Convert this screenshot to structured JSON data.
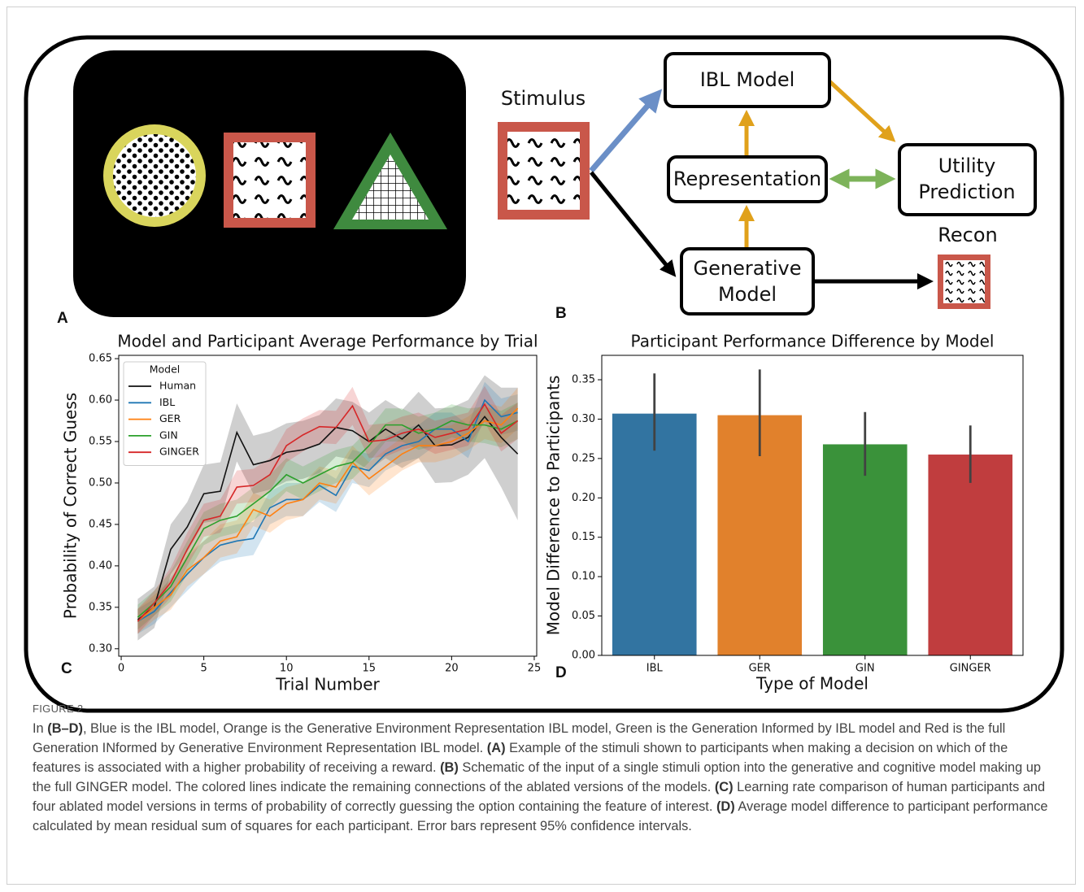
{
  "panel_labels": [
    "A",
    "B",
    "C",
    "D"
  ],
  "diagram": {
    "stimulus": "Stimulus",
    "ibl_model": "IBL Model",
    "representation": "Representation",
    "utility_prediction": [
      "Utility",
      "Prediction"
    ],
    "generative_model": [
      "Generative",
      "Model"
    ],
    "recon": "Recon"
  },
  "chart_data": [
    {
      "type": "line",
      "title": "Model and Participant Average Performance by Trial",
      "x_label": "Trial Number",
      "y_label": "Probability of Correct Guess",
      "x": [
        1,
        2,
        3,
        4,
        5,
        6,
        7,
        8,
        9,
        10,
        11,
        12,
        13,
        14,
        15,
        16,
        17,
        18,
        19,
        20,
        21,
        22,
        23,
        24
      ],
      "xlim": [
        -0.15,
        25.15
      ],
      "xticks": [
        0,
        5,
        10,
        15,
        20,
        25
      ],
      "ylim": [
        0.291,
        0.654
      ],
      "yticks": [
        {
          "value": 0.3,
          "label": "0.30"
        },
        0.35,
        {
          "value": 0.4,
          "label": "0.40"
        },
        0.45,
        {
          "value": 0.5,
          "label": "0.50"
        },
        0.55,
        {
          "value": 0.6,
          "label": "0.60"
        },
        0.65
      ],
      "grid": false,
      "legend": "upper left",
      "legend_title": "Model",
      "series": [
        {
          "name": "Human",
          "color": "#111111",
          "values": [
            0.335,
            0.35,
            0.42,
            0.447,
            0.487,
            0.49,
            0.561,
            0.522,
            0.527,
            0.537,
            0.54,
            0.547,
            0.567,
            0.563,
            0.55,
            0.565,
            0.553,
            0.57,
            0.545,
            0.546,
            0.555,
            0.58,
            0.555,
            0.535
          ],
          "lower": [
            0.31,
            0.325,
            0.39,
            0.417,
            0.452,
            0.455,
            0.526,
            0.487,
            0.492,
            0.502,
            0.505,
            0.512,
            0.532,
            0.528,
            0.515,
            0.53,
            0.518,
            0.53,
            0.5,
            0.501,
            0.51,
            0.53,
            0.495,
            0.455
          ],
          "upper": [
            0.36,
            0.375,
            0.45,
            0.477,
            0.522,
            0.525,
            0.596,
            0.557,
            0.562,
            0.572,
            0.575,
            0.582,
            0.602,
            0.598,
            0.585,
            0.6,
            0.588,
            0.61,
            0.59,
            0.591,
            0.6,
            0.63,
            0.615,
            0.615
          ]
        },
        {
          "name": "IBL",
          "color": "#1f77b4",
          "values": [
            0.333,
            0.345,
            0.368,
            0.39,
            0.41,
            0.425,
            0.43,
            0.433,
            0.47,
            0.48,
            0.48,
            0.497,
            0.485,
            0.52,
            0.515,
            0.535,
            0.545,
            0.55,
            0.565,
            0.565,
            0.55,
            0.6,
            0.58,
            0.585
          ],
          "lower": [
            0.318,
            0.33,
            0.35,
            0.37,
            0.39,
            0.405,
            0.41,
            0.413,
            0.45,
            0.46,
            0.46,
            0.477,
            0.465,
            0.5,
            0.495,
            0.515,
            0.525,
            0.53,
            0.545,
            0.545,
            0.53,
            0.578,
            0.558,
            0.563
          ],
          "upper": [
            0.348,
            0.36,
            0.386,
            0.41,
            0.43,
            0.445,
            0.45,
            0.453,
            0.49,
            0.5,
            0.5,
            0.517,
            0.505,
            0.54,
            0.535,
            0.555,
            0.565,
            0.57,
            0.585,
            0.585,
            0.57,
            0.622,
            0.602,
            0.607
          ]
        },
        {
          "name": "GER",
          "color": "#ff7f0e",
          "values": [
            0.333,
            0.35,
            0.365,
            0.395,
            0.41,
            0.43,
            0.435,
            0.468,
            0.46,
            0.475,
            0.48,
            0.5,
            0.495,
            0.525,
            0.505,
            0.52,
            0.535,
            0.545,
            0.545,
            0.55,
            0.56,
            0.575,
            0.57,
            0.59
          ],
          "lower": [
            0.318,
            0.335,
            0.347,
            0.375,
            0.39,
            0.41,
            0.415,
            0.448,
            0.44,
            0.455,
            0.46,
            0.48,
            0.475,
            0.505,
            0.485,
            0.5,
            0.515,
            0.525,
            0.525,
            0.53,
            0.54,
            0.553,
            0.548,
            0.565
          ],
          "upper": [
            0.348,
            0.365,
            0.383,
            0.415,
            0.43,
            0.45,
            0.455,
            0.488,
            0.48,
            0.495,
            0.5,
            0.52,
            0.515,
            0.545,
            0.525,
            0.54,
            0.555,
            0.565,
            0.565,
            0.57,
            0.58,
            0.597,
            0.592,
            0.615
          ]
        },
        {
          "name": "GIN",
          "color": "#2ca02c",
          "values": [
            0.338,
            0.355,
            0.375,
            0.41,
            0.445,
            0.455,
            0.46,
            0.475,
            0.49,
            0.51,
            0.5,
            0.51,
            0.52,
            0.525,
            0.545,
            0.57,
            0.57,
            0.56,
            0.565,
            0.575,
            0.57,
            0.57,
            0.565,
            0.575
          ],
          "lower": [
            0.323,
            0.34,
            0.357,
            0.39,
            0.425,
            0.435,
            0.44,
            0.455,
            0.47,
            0.49,
            0.48,
            0.49,
            0.5,
            0.505,
            0.525,
            0.55,
            0.55,
            0.54,
            0.545,
            0.555,
            0.55,
            0.548,
            0.543,
            0.553
          ],
          "upper": [
            0.353,
            0.37,
            0.393,
            0.43,
            0.465,
            0.475,
            0.48,
            0.495,
            0.51,
            0.53,
            0.52,
            0.53,
            0.54,
            0.545,
            0.565,
            0.59,
            0.59,
            0.58,
            0.585,
            0.595,
            0.59,
            0.592,
            0.587,
            0.597
          ]
        },
        {
          "name": "GINGER",
          "color": "#d62728",
          "values": [
            0.333,
            0.355,
            0.38,
            0.42,
            0.455,
            0.46,
            0.495,
            0.497,
            0.51,
            0.545,
            0.558,
            0.568,
            0.567,
            0.593,
            0.55,
            0.552,
            0.56,
            0.565,
            0.555,
            0.56,
            0.565,
            0.595,
            0.56,
            0.575
          ],
          "lower": [
            0.318,
            0.34,
            0.362,
            0.4,
            0.435,
            0.44,
            0.475,
            0.477,
            0.49,
            0.525,
            0.538,
            0.548,
            0.547,
            0.57,
            0.53,
            0.532,
            0.54,
            0.545,
            0.535,
            0.54,
            0.545,
            0.573,
            0.538,
            0.553
          ],
          "upper": [
            0.348,
            0.37,
            0.398,
            0.44,
            0.475,
            0.48,
            0.515,
            0.517,
            0.53,
            0.565,
            0.578,
            0.588,
            0.587,
            0.616,
            0.57,
            0.572,
            0.58,
            0.585,
            0.575,
            0.58,
            0.585,
            0.617,
            0.582,
            0.597
          ]
        }
      ]
    },
    {
      "type": "bar",
      "title": "Participant Performance Difference by Model",
      "x_label": "Type of Model",
      "y_label": "Model Difference to Participants",
      "categories": [
        "IBL",
        "GER",
        "GIN",
        "GINGER"
      ],
      "values": [
        0.307,
        0.305,
        0.268,
        0.255
      ],
      "ci_lower": [
        0.26,
        0.253,
        0.228,
        0.219
      ],
      "ci_upper": [
        0.358,
        0.363,
        0.309,
        0.292
      ],
      "colors": [
        "#3274a1",
        "#e1812c",
        "#3a923a",
        "#c03d3e"
      ],
      "ylim": [
        0,
        0.381
      ],
      "yticks": [
        {
          "value": 0,
          "label": "0.00"
        },
        0.05,
        {
          "value": 0.1,
          "label": "0.10"
        },
        0.15,
        {
          "value": 0.2,
          "label": "0.20"
        },
        0.25,
        {
          "value": 0.3,
          "label": "0.30"
        },
        0.35
      ],
      "grid": false
    }
  ],
  "figure_label": "FIGURE 2",
  "caption": [
    "In ",
    "(B–D)",
    ", Blue is the IBL model, Orange is the Generative Environment Representation IBL model, Green is the Generation Informed by IBL model and Red is the full Generation INformed by Generative Environment Representation IBL model. ",
    "(A)",
    " Example of the stimuli shown to participants when making a decision on which of the features is associated with a higher probability of receiving a reward. ",
    "(B)",
    " Schematic of the input of a single stimuli option into the generative and cognitive model making up the full GINGER model. The colored lines indicate the remaining connections of the ablated versions of the models. ",
    "(C)",
    " Learning rate comparison of human participants and four ablated model versions in terms of probability of correctly guessing the option containing the feature of interest. ",
    "(D)",
    " Average model difference to participant performance calculated by mean residual sum of squares for each participant. Error bars represent 95% confidence intervals."
  ]
}
